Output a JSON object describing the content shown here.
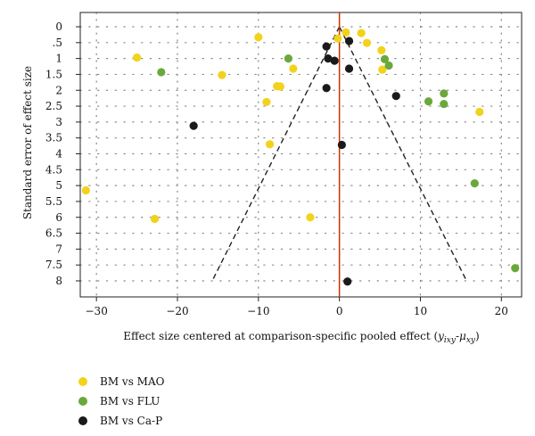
{
  "chart_data": {
    "type": "scatter",
    "xlabel": "Effect size centered at comparison-specific pooled effect (",
    "xlabel_var_y": "y",
    "xlabel_sub_y": "ixy",
    "xlabel_minus": "-",
    "xlabel_var_mu": "μ",
    "xlabel_sub_mu": "xy",
    "xlabel_close": ")",
    "ylabel": "Standard error of effect size",
    "xlim": [
      -32,
      22.5
    ],
    "ylim": [
      0,
      8.2
    ],
    "x_ticks": [
      -30,
      -20,
      -10,
      0,
      10,
      20
    ],
    "x_tick_labels": [
      "−30",
      "−20",
      "−10",
      "0",
      "10",
      "20"
    ],
    "y_ticks": [
      0,
      0.5,
      1,
      1.5,
      2,
      2.5,
      3,
      3.5,
      4,
      4.5,
      5,
      5.5,
      6,
      6.5,
      7,
      7.5,
      8
    ],
    "y_tick_labels": [
      "0",
      ".5",
      "1",
      "1.5",
      "2",
      "2.5",
      "3",
      "3.5",
      "4",
      "4.5",
      "5",
      "5.5",
      "6",
      "6.5",
      "7",
      "7.5",
      "8"
    ],
    "grid": "dotted",
    "reference_line": {
      "x": 0,
      "color": "#cc3300"
    },
    "funnel": {
      "apex": [
        0,
        0
      ],
      "left_end": [
        -15.7,
        8.0
      ],
      "right_end": [
        15.7,
        8.0
      ]
    },
    "legend_position": "bottom-left",
    "series": [
      {
        "name": "BM vs MAO",
        "color": "#f2d21b",
        "points": [
          {
            "x": -31.3,
            "y": 5.15
          },
          {
            "x": -25.0,
            "y": 0.97
          },
          {
            "x": -22.8,
            "y": 6.05
          },
          {
            "x": -14.5,
            "y": 1.52
          },
          {
            "x": -10.0,
            "y": 0.33
          },
          {
            "x": -9.0,
            "y": 2.37
          },
          {
            "x": -8.6,
            "y": 3.7
          },
          {
            "x": -7.7,
            "y": 1.87
          },
          {
            "x": -7.3,
            "y": 1.88
          },
          {
            "x": -5.7,
            "y": 1.32
          },
          {
            "x": -3.6,
            "y": 6.0
          },
          {
            "x": -0.2,
            "y": 0.37
          },
          {
            "x": 0.8,
            "y": 0.18
          },
          {
            "x": 2.7,
            "y": 0.2
          },
          {
            "x": 3.4,
            "y": 0.51
          },
          {
            "x": 5.2,
            "y": 0.74
          },
          {
            "x": 5.3,
            "y": 1.35
          },
          {
            "x": 17.3,
            "y": 2.68
          }
        ]
      },
      {
        "name": "BM vs FLU",
        "color": "#6aa83c",
        "points": [
          {
            "x": -22.0,
            "y": 1.43
          },
          {
            "x": -6.3,
            "y": 1.0
          },
          {
            "x": 5.6,
            "y": 1.02
          },
          {
            "x": 6.1,
            "y": 1.22
          },
          {
            "x": 11.0,
            "y": 2.35
          },
          {
            "x": 12.9,
            "y": 2.1
          },
          {
            "x": 12.9,
            "y": 2.43
          },
          {
            "x": 16.7,
            "y": 4.93
          },
          {
            "x": 21.7,
            "y": 7.6
          }
        ]
      },
      {
        "name": "BM vs Ca-P",
        "color": "#1a1a1a",
        "points": [
          {
            "x": -18.0,
            "y": 3.12
          },
          {
            "x": -1.6,
            "y": 0.62
          },
          {
            "x": -1.4,
            "y": 1.0
          },
          {
            "x": -0.6,
            "y": 1.07
          },
          {
            "x": -1.6,
            "y": 1.93
          },
          {
            "x": 0.3,
            "y": 3.72
          },
          {
            "x": 1.2,
            "y": 0.45
          },
          {
            "x": 1.2,
            "y": 1.32
          },
          {
            "x": 7.0,
            "y": 2.18
          },
          {
            "x": 1.0,
            "y": 8.02
          }
        ]
      }
    ]
  }
}
